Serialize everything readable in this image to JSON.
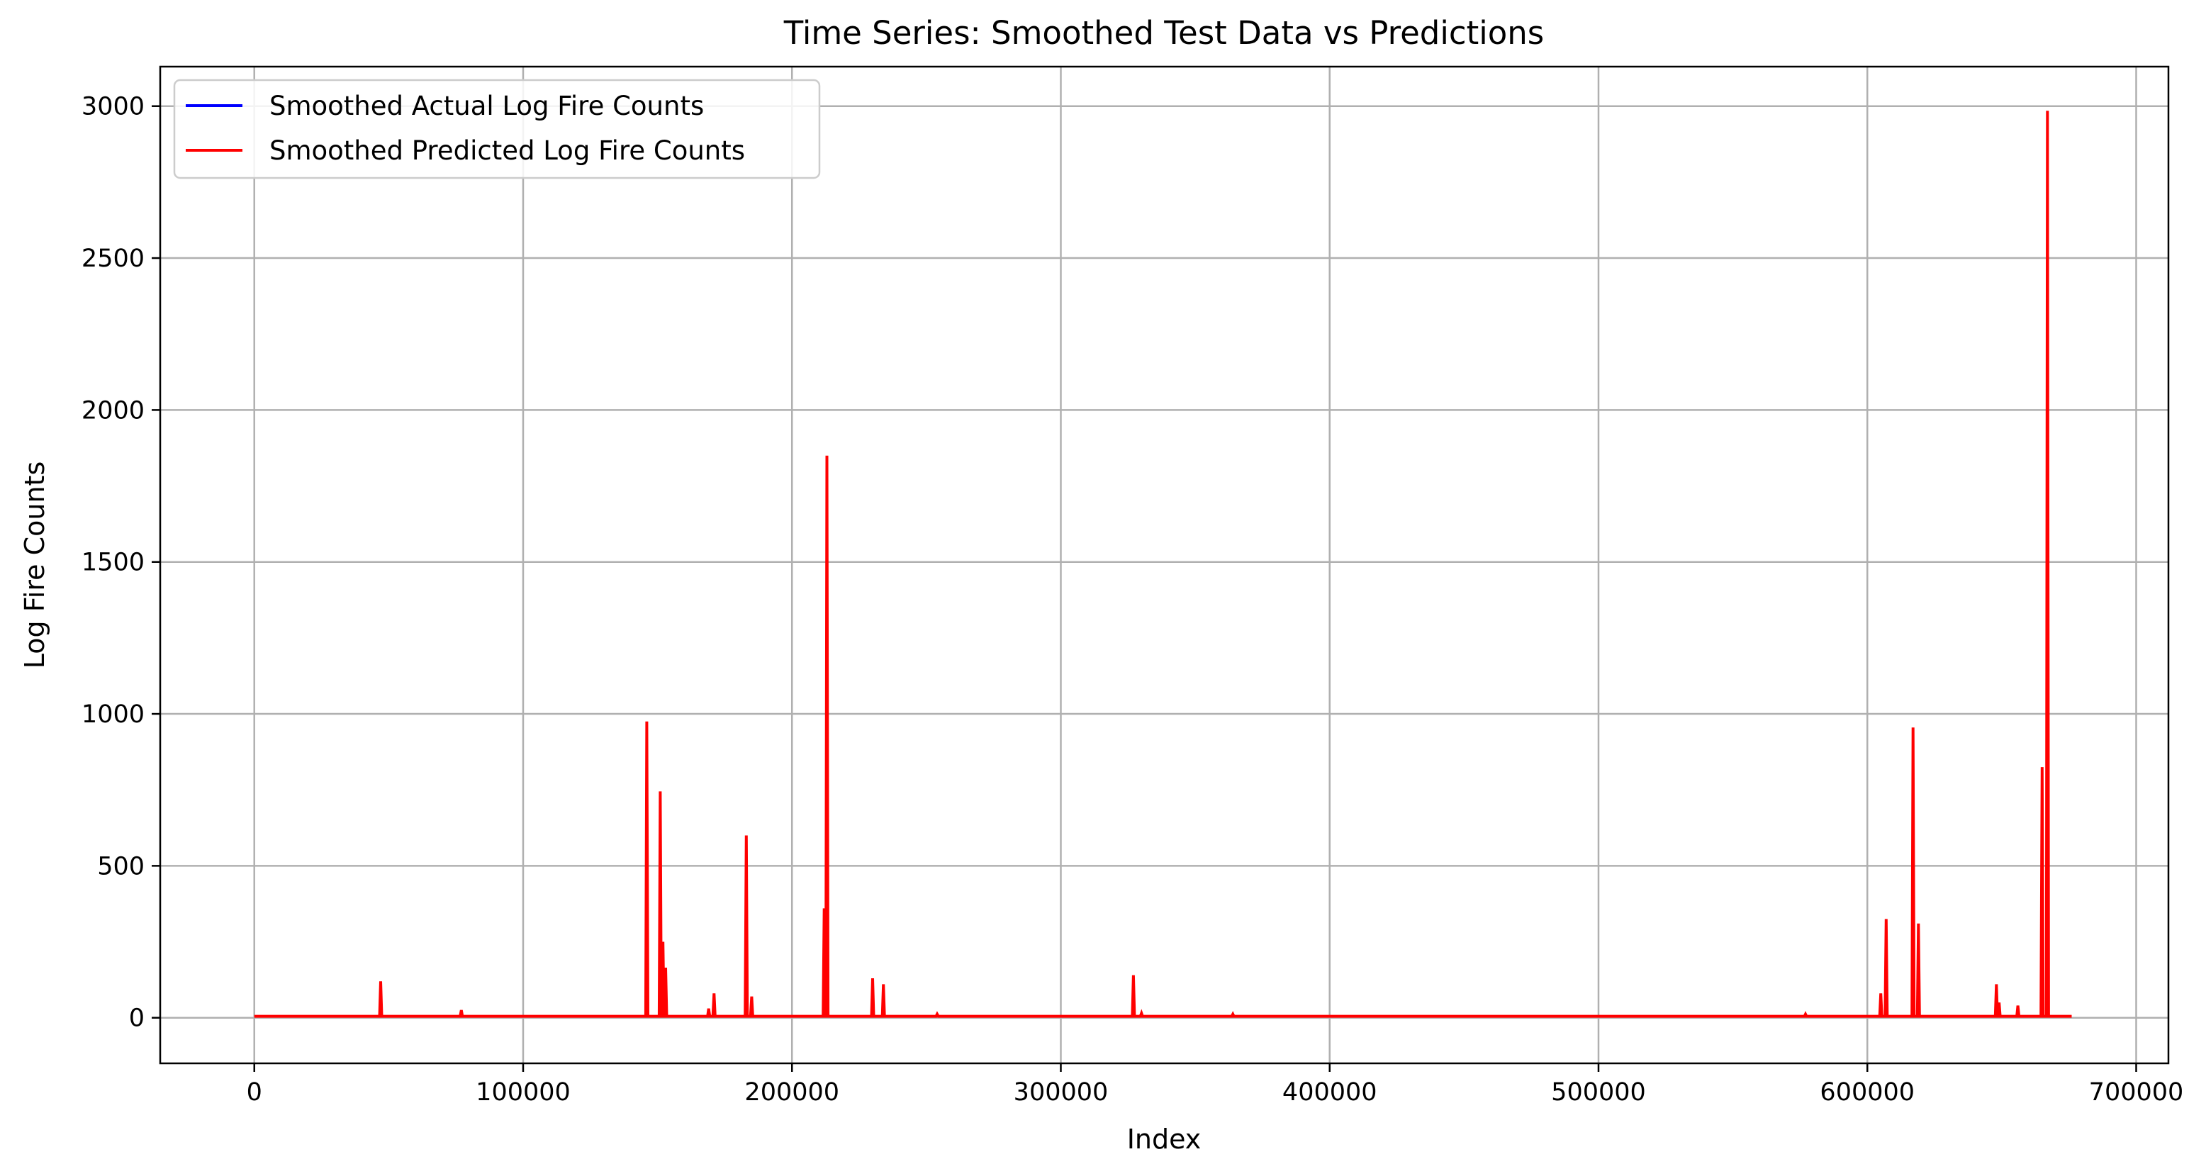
{
  "chart_data": {
    "type": "line",
    "title": "Time Series: Smoothed Test Data vs Predictions",
    "xlabel": "Index",
    "ylabel": "Log Fire Counts",
    "xlim": [
      -35000,
      712000
    ],
    "ylim": [
      -150,
      3130
    ],
    "x_ticks": [
      0,
      100000,
      200000,
      300000,
      400000,
      500000,
      600000,
      700000
    ],
    "x_tick_labels": [
      "0",
      "100000",
      "200000",
      "300000",
      "400000",
      "500000",
      "600000",
      "700000"
    ],
    "y_ticks": [
      0,
      500,
      1000,
      1500,
      2000,
      2500,
      3000
    ],
    "y_tick_labels": [
      "0",
      "500",
      "1000",
      "1500",
      "2000",
      "2500",
      "3000"
    ],
    "grid": true,
    "legend_position": "top-left",
    "baseline": 5,
    "x_start": 0,
    "x_end": 676000,
    "series": [
      {
        "name": "Smoothed Actual Log Fire Counts",
        "color": "#0000ff",
        "spikes": []
      },
      {
        "name": "Smoothed Predicted Log Fire Counts",
        "color": "#ff0000",
        "spikes": [
          [
            47000,
            120
          ],
          [
            77000,
            25
          ],
          [
            146000,
            975
          ],
          [
            151000,
            745
          ],
          [
            152000,
            250
          ],
          [
            153000,
            165
          ],
          [
            169000,
            30
          ],
          [
            171000,
            80
          ],
          [
            183000,
            600
          ],
          [
            185000,
            70
          ],
          [
            212000,
            360
          ],
          [
            213000,
            1850
          ],
          [
            230000,
            130
          ],
          [
            234000,
            110
          ],
          [
            254000,
            12
          ],
          [
            327000,
            140
          ],
          [
            330000,
            15
          ],
          [
            364000,
            12
          ],
          [
            577000,
            12
          ],
          [
            605000,
            80
          ],
          [
            607000,
            325
          ],
          [
            617000,
            955
          ],
          [
            619000,
            310
          ],
          [
            648000,
            110
          ],
          [
            649000,
            50
          ],
          [
            656000,
            40
          ],
          [
            665000,
            825
          ],
          [
            667000,
            2985
          ]
        ]
      }
    ]
  }
}
